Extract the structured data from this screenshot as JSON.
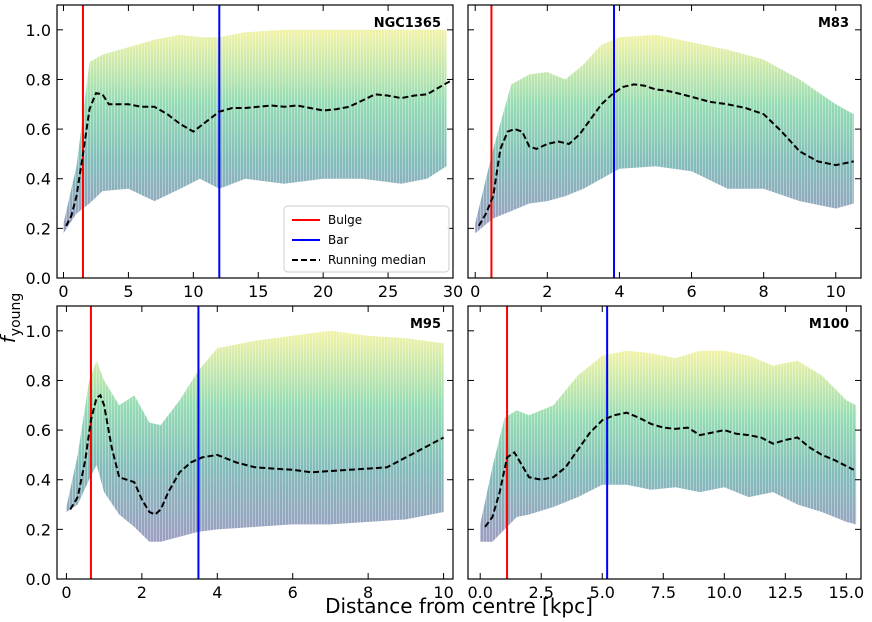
{
  "figure": {
    "shared_xlabel": "Distance from centre [kpc]",
    "shared_ylabel_main": "f",
    "shared_ylabel_sub": "young"
  },
  "colors": {
    "bulge": "#ff0000",
    "bar": "#0000ff",
    "median": "#000000",
    "cloud_low": "#3b4a8a",
    "cloud_mid": "#2fa58c",
    "cloud_high": "#d8e219"
  },
  "chart_data": [
    {
      "type": "scatter",
      "title": "NGC1365",
      "xlim": [
        -0.5,
        30
      ],
      "ylim": [
        0.0,
        1.1
      ],
      "xticks": [
        0,
        5,
        10,
        15,
        20,
        25,
        30
      ],
      "xtick_labels": [
        "0",
        "5",
        "10",
        "15",
        "20",
        "25",
        "30"
      ],
      "yticks": [
        0.0,
        0.2,
        0.4,
        0.6,
        0.8,
        1.0
      ],
      "ytick_labels": [
        "0.0",
        "0.2",
        "0.4",
        "0.6",
        "0.8",
        "1.0"
      ],
      "bulge_x": 1.5,
      "bar_x": 12.0,
      "legend": {
        "placement": "lower-right",
        "entries": [
          "Bulge",
          "Bar",
          "Running median"
        ]
      },
      "median": {
        "name": "Running median",
        "x": [
          0.2,
          0.6,
          1.0,
          1.5,
          2.0,
          2.5,
          3.0,
          3.5,
          4.0,
          5.0,
          6.0,
          7.0,
          8.0,
          9.0,
          10.0,
          11.0,
          12.0,
          13.0,
          14.0,
          15.0,
          16.0,
          17.0,
          18.0,
          19.0,
          20.0,
          21.0,
          22.0,
          23.0,
          24.0,
          25.0,
          26.0,
          27.0,
          28.0,
          29.0,
          30.0
        ],
        "y": [
          0.21,
          0.25,
          0.33,
          0.5,
          0.68,
          0.745,
          0.74,
          0.7,
          0.7,
          0.7,
          0.69,
          0.69,
          0.66,
          0.62,
          0.59,
          0.63,
          0.67,
          0.685,
          0.685,
          0.69,
          0.695,
          0.69,
          0.695,
          0.685,
          0.675,
          0.68,
          0.69,
          0.715,
          0.74,
          0.735,
          0.725,
          0.735,
          0.74,
          0.77,
          0.8
        ]
      },
      "cloud": {
        "x": [
          0.0,
          1.0,
          2.0,
          3.0,
          5.0,
          7.0,
          9.0,
          10.5,
          12.0,
          14.0,
          17.0,
          20.0,
          23.0,
          26.0,
          28.0,
          29.5
        ],
        "low": [
          0.18,
          0.26,
          0.3,
          0.35,
          0.36,
          0.31,
          0.36,
          0.4,
          0.36,
          0.4,
          0.38,
          0.4,
          0.4,
          0.38,
          0.4,
          0.45
        ],
        "high": [
          0.22,
          0.45,
          0.87,
          0.9,
          0.93,
          0.96,
          0.98,
          0.97,
          0.97,
          0.99,
          1.0,
          1.0,
          1.0,
          1.0,
          1.0,
          1.0
        ]
      }
    },
    {
      "type": "scatter",
      "title": "M83",
      "xlim": [
        -0.2,
        10.7
      ],
      "ylim": [
        0.0,
        1.1
      ],
      "xticks": [
        0,
        2,
        4,
        6,
        8,
        10
      ],
      "xtick_labels": [
        "0",
        "2",
        "4",
        "6",
        "8",
        "10"
      ],
      "yticks": [
        0.0,
        0.2,
        0.4,
        0.6,
        0.8,
        1.0
      ],
      "ytick_labels": [
        "0.0",
        "0.2",
        "0.4",
        "0.6",
        "0.8",
        "1.0"
      ],
      "bulge_x": 0.45,
      "bar_x": 3.85,
      "median": {
        "name": "Running median",
        "x": [
          0.1,
          0.3,
          0.5,
          0.7,
          0.9,
          1.1,
          1.3,
          1.5,
          1.7,
          2.0,
          2.3,
          2.6,
          2.9,
          3.2,
          3.5,
          3.8,
          4.1,
          4.4,
          4.7,
          5.0,
          5.3,
          5.6,
          6.0,
          6.5,
          7.0,
          7.5,
          8.0,
          8.5,
          9.0,
          9.5,
          10.0,
          10.5
        ],
        "y": [
          0.21,
          0.26,
          0.33,
          0.52,
          0.59,
          0.6,
          0.59,
          0.53,
          0.52,
          0.54,
          0.55,
          0.54,
          0.58,
          0.64,
          0.7,
          0.74,
          0.77,
          0.78,
          0.775,
          0.76,
          0.755,
          0.745,
          0.73,
          0.71,
          0.7,
          0.685,
          0.66,
          0.59,
          0.51,
          0.47,
          0.455,
          0.47
        ]
      },
      "cloud": {
        "x": [
          0.0,
          0.5,
          1.0,
          1.5,
          2.0,
          2.5,
          3.0,
          3.5,
          4.0,
          5.0,
          6.0,
          7.0,
          8.0,
          9.0,
          10.0,
          10.5
        ],
        "low": [
          0.18,
          0.24,
          0.27,
          0.3,
          0.31,
          0.33,
          0.36,
          0.4,
          0.44,
          0.45,
          0.43,
          0.36,
          0.36,
          0.31,
          0.28,
          0.3
        ],
        "high": [
          0.22,
          0.52,
          0.78,
          0.82,
          0.83,
          0.8,
          0.86,
          0.94,
          0.97,
          0.98,
          0.95,
          0.92,
          0.88,
          0.8,
          0.7,
          0.66
        ]
      }
    },
    {
      "type": "scatter",
      "title": "M95",
      "xlim": [
        -0.25,
        10.25
      ],
      "ylim": [
        0.0,
        1.1
      ],
      "xticks": [
        0,
        2,
        4,
        6,
        8,
        10
      ],
      "xtick_labels": [
        "0",
        "2",
        "4",
        "6",
        "8",
        "10"
      ],
      "yticks": [
        0.0,
        0.2,
        0.4,
        0.6,
        0.8,
        1.0
      ],
      "ytick_labels": [
        "0.0",
        "0.2",
        "0.4",
        "0.6",
        "0.8",
        "1.0"
      ],
      "bulge_x": 0.65,
      "bar_x": 3.5,
      "median": {
        "name": "Running median",
        "x": [
          0.1,
          0.3,
          0.5,
          0.65,
          0.8,
          0.9,
          1.0,
          1.2,
          1.4,
          1.6,
          1.8,
          2.0,
          2.2,
          2.35,
          2.5,
          2.7,
          3.0,
          3.3,
          3.6,
          4.0,
          4.5,
          5.0,
          5.5,
          6.0,
          6.5,
          7.0,
          7.5,
          8.0,
          8.5,
          9.0,
          9.5,
          10.0
        ],
        "y": [
          0.28,
          0.33,
          0.48,
          0.64,
          0.73,
          0.74,
          0.7,
          0.53,
          0.41,
          0.4,
          0.39,
          0.32,
          0.27,
          0.26,
          0.28,
          0.35,
          0.43,
          0.47,
          0.49,
          0.5,
          0.47,
          0.45,
          0.445,
          0.44,
          0.43,
          0.435,
          0.44,
          0.445,
          0.45,
          0.49,
          0.53,
          0.57
        ]
      },
      "cloud": {
        "x": [
          0.0,
          0.3,
          0.6,
          0.8,
          1.0,
          1.4,
          1.8,
          2.2,
          2.5,
          3.0,
          3.5,
          4.0,
          5.0,
          6.0,
          7.0,
          8.0,
          9.0,
          10.0
        ],
        "low": [
          0.27,
          0.3,
          0.4,
          0.46,
          0.35,
          0.26,
          0.21,
          0.15,
          0.15,
          0.17,
          0.19,
          0.2,
          0.21,
          0.22,
          0.22,
          0.23,
          0.24,
          0.27
        ],
        "high": [
          0.29,
          0.5,
          0.8,
          0.88,
          0.8,
          0.7,
          0.74,
          0.63,
          0.62,
          0.72,
          0.84,
          0.93,
          0.96,
          0.98,
          1.0,
          0.98,
          0.97,
          0.95
        ]
      }
    },
    {
      "type": "scatter",
      "title": "M100",
      "xlim": [
        -0.5,
        15.6
      ],
      "ylim": [
        0.0,
        1.1
      ],
      "xticks": [
        0.0,
        2.5,
        5.0,
        7.5,
        10.0,
        12.5,
        15.0
      ],
      "xtick_labels": [
        "0.0",
        "2.5",
        "5.0",
        "7.5",
        "10.0",
        "12.5",
        "15.0"
      ],
      "yticks": [
        0.0,
        0.2,
        0.4,
        0.6,
        0.8,
        1.0
      ],
      "ytick_labels": [
        "0.0",
        "0.2",
        "0.4",
        "0.6",
        "0.8",
        "1.0"
      ],
      "bulge_x": 1.1,
      "bar_x": 5.2,
      "median": {
        "name": "Running median",
        "x": [
          0.2,
          0.5,
          0.8,
          1.1,
          1.4,
          1.7,
          2.0,
          2.5,
          3.0,
          3.5,
          4.0,
          4.5,
          5.0,
          5.5,
          6.0,
          6.5,
          7.0,
          7.5,
          8.0,
          8.5,
          9.0,
          9.5,
          10.0,
          10.5,
          11.0,
          11.5,
          12.0,
          12.5,
          13.0,
          13.5,
          14.0,
          14.5,
          15.0,
          15.3
        ],
        "y": [
          0.21,
          0.25,
          0.35,
          0.49,
          0.51,
          0.46,
          0.41,
          0.4,
          0.41,
          0.45,
          0.52,
          0.59,
          0.64,
          0.66,
          0.67,
          0.65,
          0.625,
          0.61,
          0.605,
          0.61,
          0.58,
          0.59,
          0.6,
          0.585,
          0.58,
          0.57,
          0.545,
          0.56,
          0.57,
          0.53,
          0.5,
          0.48,
          0.455,
          0.44
        ]
      },
      "cloud": {
        "x": [
          0.0,
          0.5,
          1.0,
          1.5,
          2.0,
          3.0,
          4.0,
          5.0,
          6.0,
          7.0,
          8.0,
          9.0,
          10.0,
          11.0,
          12.0,
          13.0,
          14.0,
          15.0,
          15.4
        ],
        "low": [
          0.15,
          0.15,
          0.2,
          0.25,
          0.26,
          0.29,
          0.33,
          0.38,
          0.38,
          0.36,
          0.37,
          0.35,
          0.37,
          0.33,
          0.35,
          0.3,
          0.27,
          0.23,
          0.22
        ],
        "high": [
          0.22,
          0.45,
          0.65,
          0.68,
          0.66,
          0.7,
          0.82,
          0.9,
          0.92,
          0.91,
          0.89,
          0.92,
          0.92,
          0.9,
          0.86,
          0.88,
          0.82,
          0.72,
          0.7
        ]
      }
    }
  ]
}
